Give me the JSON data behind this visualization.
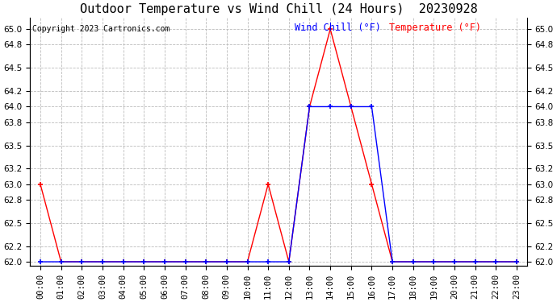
{
  "title": "Outdoor Temperature vs Wind Chill (24 Hours)  20230928",
  "copyright": "Copyright 2023 Cartronics.com",
  "legend_wind_chill": "Wind Chill (°F)",
  "legend_temperature": "Temperature (°F)",
  "hours": [
    "00:00",
    "01:00",
    "02:00",
    "03:00",
    "04:00",
    "05:00",
    "06:00",
    "07:00",
    "08:00",
    "09:00",
    "10:00",
    "11:00",
    "12:00",
    "13:00",
    "14:00",
    "15:00",
    "16:00",
    "17:00",
    "18:00",
    "19:00",
    "20:00",
    "21:00",
    "22:00",
    "23:00"
  ],
  "wind_chill": [
    63.0,
    62.0,
    62.0,
    62.0,
    62.0,
    62.0,
    62.0,
    62.0,
    62.0,
    62.0,
    62.0,
    63.0,
    62.0,
    64.0,
    65.0,
    64.0,
    63.0,
    62.0,
    62.0,
    62.0,
    62.0,
    62.0,
    62.0,
    62.0
  ],
  "temperature": [
    62.0,
    62.0,
    62.0,
    62.0,
    62.0,
    62.0,
    62.0,
    62.0,
    62.0,
    62.0,
    62.0,
    62.0,
    62.0,
    64.0,
    64.0,
    64.0,
    64.0,
    62.0,
    62.0,
    62.0,
    62.0,
    62.0,
    62.0,
    62.0
  ],
  "wind_chill_color": "red",
  "temperature_color": "blue",
  "wind_chill_legend_color": "blue",
  "temperature_legend_color": "red",
  "ylim_min": 62.0,
  "ylim_max": 65.0,
  "yticks": [
    62.0,
    62.2,
    62.5,
    62.8,
    63.0,
    63.2,
    63.5,
    63.8,
    64.0,
    64.2,
    64.5,
    64.8,
    65.0
  ],
  "background_color": "#ffffff",
  "grid_color": "#bbbbbb",
  "title_fontsize": 11,
  "tick_fontsize": 7.5,
  "legend_fontsize": 8.5,
  "copyright_fontsize": 7
}
